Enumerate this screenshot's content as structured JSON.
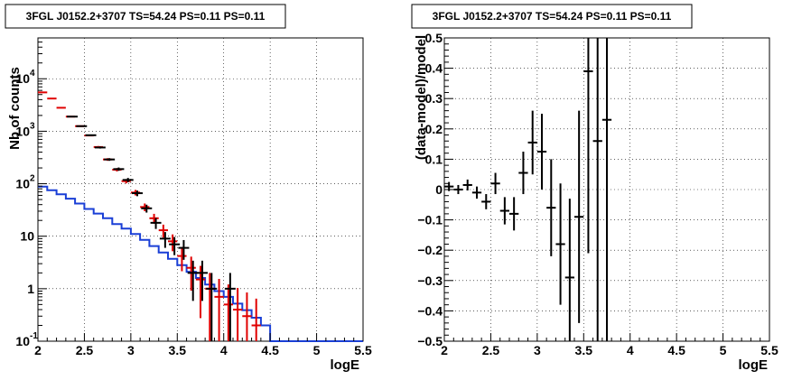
{
  "chart_data": [
    {
      "type": "line",
      "title": "3FGL J0152.2+3707 TS=54.24 PS=0.11 PS=0.11",
      "xlabel": "logE",
      "ylabel": "Nb of counts",
      "xlim": [
        2,
        5.5
      ],
      "ylim": [
        0.1,
        60000
      ],
      "yscale": "log",
      "grid": true,
      "x_ticks": [
        "2",
        "2.5",
        "3",
        "3.5",
        "4",
        "4.5",
        "5",
        "5.5"
      ],
      "y_ticks": [
        {
          "value": 0.1,
          "label": "10",
          "exp": "-1"
        },
        {
          "value": 1,
          "label": "1",
          "exp": ""
        },
        {
          "value": 10,
          "label": "10",
          "exp": ""
        },
        {
          "value": 100,
          "label": "10",
          "exp": "2"
        },
        {
          "value": 1000,
          "label": "10",
          "exp": "3"
        },
        {
          "value": 10000,
          "label": "10",
          "exp": "4"
        }
      ],
      "bin_edges": [
        2.0,
        2.1,
        2.2,
        2.3,
        2.4,
        2.5,
        2.6,
        2.7,
        2.8,
        2.9,
        3.0,
        3.1,
        3.2,
        3.3,
        3.4,
        3.5,
        3.6,
        3.7,
        3.8,
        3.9,
        4.0,
        4.1,
        4.2,
        4.3,
        4.4,
        4.5,
        4.6,
        4.7,
        4.8,
        4.9,
        5.0,
        5.1,
        5.2,
        5.3,
        5.4,
        5.5
      ],
      "series": [
        {
          "role": "background-model",
          "color": "#1a3fd6",
          "values": [
            88,
            75,
            63,
            52,
            42,
            33,
            27,
            22,
            17,
            14,
            11,
            8.5,
            6.5,
            4.9,
            3.7,
            2.8,
            2.1,
            1.6,
            1.2,
            0.9,
            0.7,
            0.52,
            0.39,
            0.28,
            0.2,
            0.1,
            0.1,
            0.1,
            0.1,
            0.1,
            0.1,
            0.1,
            0.1,
            0.1,
            0.1
          ]
        },
        {
          "role": "total-model",
          "color": "#e00000",
          "points": [
            {
              "x": 2.05,
              "y": 5500
            },
            {
              "x": 2.15,
              "y": 4200
            },
            {
              "x": 2.25,
              "y": 2800
            },
            {
              "x": 2.35,
              "y": 1900
            },
            {
              "x": 2.45,
              "y": 1250
            },
            {
              "x": 2.55,
              "y": 830
            },
            {
              "x": 2.65,
              "y": 500
            },
            {
              "x": 2.75,
              "y": 290
            },
            {
              "x": 2.85,
              "y": 185
            },
            {
              "x": 2.95,
              "y": 112
            },
            {
              "x": 3.05,
              "y": 68
            },
            {
              "x": 3.15,
              "y": 36
            },
            {
              "x": 3.25,
              "y": 22
            },
            {
              "x": 3.35,
              "y": 13
            },
            {
              "x": 3.45,
              "y": 8
            },
            {
              "x": 3.55,
              "y": 4.2
            },
            {
              "x": 3.65,
              "y": 2.5
            },
            {
              "x": 3.75,
              "y": 1.5
            },
            {
              "x": 3.85,
              "y": 1.0
            },
            {
              "x": 3.95,
              "y": 0.7
            },
            {
              "x": 4.05,
              "y": 0.5
            },
            {
              "x": 4.15,
              "y": 0.4
            },
            {
              "x": 4.25,
              "y": 0.3
            },
            {
              "x": 4.35,
              "y": 0.2
            }
          ]
        },
        {
          "role": "data",
          "color": "#000000",
          "points": [
            {
              "x": 2.35,
              "y": 1900
            },
            {
              "x": 2.45,
              "y": 1250
            },
            {
              "x": 2.55,
              "y": 840
            },
            {
              "x": 2.65,
              "y": 490
            },
            {
              "x": 2.75,
              "y": 290
            },
            {
              "x": 2.85,
              "y": 190
            },
            {
              "x": 2.95,
              "y": 118
            },
            {
              "x": 3.05,
              "y": 66
            },
            {
              "x": 3.15,
              "y": 34
            },
            {
              "x": 3.25,
              "y": 18
            },
            {
              "x": 3.35,
              "y": 9
            },
            {
              "x": 3.45,
              "y": 7
            },
            {
              "x": 3.55,
              "y": 6
            },
            {
              "x": 3.65,
              "y": 2
            },
            {
              "x": 3.75,
              "y": 2
            },
            {
              "x": 3.85,
              "y": 1
            },
            {
              "x": 4.05,
              "y": 1
            }
          ]
        }
      ]
    },
    {
      "type": "scatter",
      "title": "3FGL J0152.2+3707 TS=54.24 PS=0.11 PS=0.11",
      "xlabel": "logE",
      "ylabel": "(data-model)/model",
      "xlim": [
        2,
        5.5
      ],
      "ylim": [
        -0.5,
        0.5
      ],
      "grid": true,
      "x_ticks": [
        "2",
        "2.5",
        "3",
        "3.5",
        "4",
        "4.5",
        "5",
        "5.5"
      ],
      "y_ticks": [
        "−0.5",
        "−0.4",
        "−0.3",
        "−0.2",
        "−0.1",
        "0",
        "0.1",
        "0.2",
        "0.3",
        "0.4",
        "0.5"
      ],
      "points": [
        {
          "x": 2.05,
          "y": 0.01,
          "err": 0.015
        },
        {
          "x": 2.15,
          "y": 0.0,
          "err": 0.015
        },
        {
          "x": 2.25,
          "y": 0.015,
          "err": 0.018
        },
        {
          "x": 2.35,
          "y": -0.01,
          "err": 0.02
        },
        {
          "x": 2.45,
          "y": -0.04,
          "err": 0.025
        },
        {
          "x": 2.55,
          "y": 0.02,
          "err": 0.035
        },
        {
          "x": 2.65,
          "y": -0.07,
          "err": 0.045
        },
        {
          "x": 2.75,
          "y": -0.08,
          "err": 0.055
        },
        {
          "x": 2.85,
          "y": 0.055,
          "err": 0.07
        },
        {
          "x": 2.95,
          "y": 0.155,
          "err": 0.105
        },
        {
          "x": 3.05,
          "y": 0.125,
          "err": 0.125
        },
        {
          "x": 3.15,
          "y": -0.06,
          "err": 0.16
        },
        {
          "x": 3.25,
          "y": -0.18,
          "err": 0.2
        },
        {
          "x": 3.35,
          "y": -0.29,
          "err": 0.26
        },
        {
          "x": 3.45,
          "y": -0.09,
          "err": 0.35
        },
        {
          "x": 3.55,
          "y": 0.39,
          "err": 0.6
        },
        {
          "x": 3.65,
          "y": 0.16,
          "err": 0.8
        },
        {
          "x": 3.75,
          "y": 0.23,
          "err": 1.0
        }
      ]
    }
  ]
}
